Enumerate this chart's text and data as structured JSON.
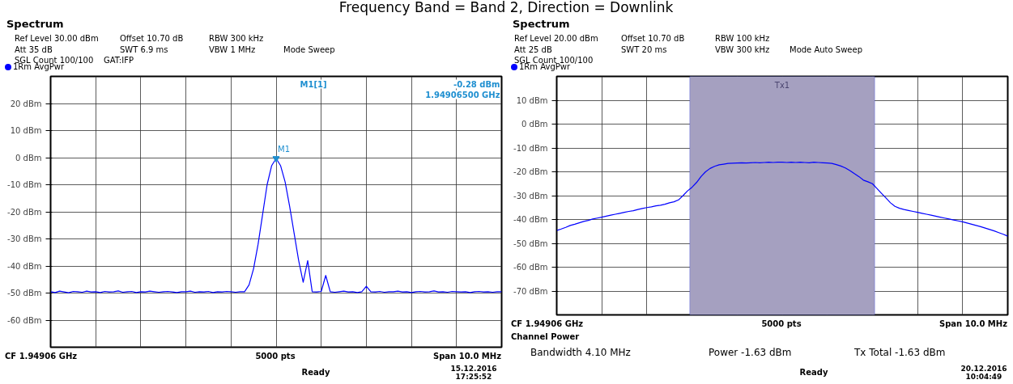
{
  "chart_data": [
    {
      "type": "line",
      "title": "Spectrum",
      "categories": [
        null,
        null,
        null,
        null,
        null,
        null,
        null,
        null,
        null,
        null,
        null,
        null,
        null,
        null,
        null,
        null,
        null,
        null,
        null,
        null,
        null,
        null,
        null,
        null,
        null,
        null,
        null,
        null,
        null,
        null,
        null,
        null,
        null,
        null,
        null,
        null,
        null,
        null,
        null,
        null,
        null,
        null,
        null,
        null,
        null,
        null,
        null,
        null,
        null,
        null,
        null,
        null,
        null,
        null,
        null,
        null,
        null,
        null,
        null,
        null,
        null,
        null,
        null,
        null,
        null,
        null,
        null,
        null,
        null,
        null,
        null,
        null,
        null,
        null,
        null,
        null,
        null,
        null,
        null,
        null,
        null,
        null,
        null,
        null,
        null,
        null,
        null,
        null,
        null,
        null,
        null,
        null,
        null,
        null,
        null,
        null,
        null,
        null,
        null,
        null,
        null
      ],
      "series": [
        {
          "name": "1Rm AvgPwr",
          "color": "#0000ff",
          "values": [
            -49.5,
            -49.8,
            -49.3,
            -49.6,
            -49.9,
            -49.4,
            -49.5,
            -49.7,
            -49.3,
            -49.6,
            -49.5,
            -49.8,
            -49.4,
            -49.6,
            -49.5,
            -49.2,
            -49.7,
            -49.5,
            -49.4,
            -49.8,
            -49.5,
            -49.6,
            -49.3,
            -49.5,
            -49.7,
            -49.5,
            -49.4,
            -49.6,
            -49.8,
            -49.5,
            -49.5,
            -49.3,
            -49.7,
            -49.5,
            -49.6,
            -49.4,
            -49.8,
            -49.5,
            -49.6,
            -49.4,
            -49.5,
            -49.7,
            -49.5,
            -49.5,
            -47,
            -41,
            -32,
            -21,
            -10,
            -3,
            -0.28,
            -3,
            -9,
            -18,
            -28,
            -38,
            -46,
            -38,
            -49.5,
            -49.6,
            -49.4,
            -43.5,
            -49.5,
            -49.7,
            -49.5,
            -49.3,
            -49.6,
            -49.5,
            -49.8,
            -49.5,
            -47.5,
            -49.5,
            -49.6,
            -49.4,
            -49.7,
            -49.5,
            -49.5,
            -49.3,
            -49.6,
            -49.5,
            -49.8,
            -49.5,
            -49.4,
            -49.6,
            -49.5,
            -49.2,
            -49.6,
            -49.5,
            -49.7,
            -49.4,
            -49.5,
            -49.6,
            -49.5,
            -49.8,
            -49.5,
            -49.4,
            -49.6,
            -49.5,
            -49.7,
            -49.5,
            -49.5
          ]
        }
      ],
      "ylim": [
        -70,
        30
      ],
      "yticks": [
        {
          "value": 20,
          "label": "20 dBm"
        },
        {
          "value": 10,
          "label": "10 dBm"
        },
        {
          "value": 0,
          "label": "0 dBm"
        },
        {
          "value": -10,
          "label": "-10 dBm"
        },
        {
          "value": -20,
          "label": "-20 dBm"
        },
        {
          "value": -30,
          "label": "-30 dBm"
        },
        {
          "value": -40,
          "label": "-40 dBm"
        },
        {
          "value": -50,
          "label": "-50 dBm"
        },
        {
          "value": -60,
          "label": "-60 dBm"
        }
      ],
      "grid": true,
      "annotations": [
        "Frequency Band = Band 2, Direction = Downlink",
        "Ref Level 30.00 dBm",
        "Offset 10.70 dB",
        "RBW 300 kHz",
        "Att 35 dB",
        "SWT 6.9 ms",
        "VBW 1 MHz",
        "Mode Sweep",
        "SGL Count 100/100",
        "GAT:IFP",
        "M1[1]",
        "-0.28 dBm",
        "1.94906500 GHz",
        "CF 1.94906 GHz",
        "5000 pts",
        "Span 10.0 MHz",
        "Ready",
        "15.12.2016",
        "17:25:52",
        "M1"
      ]
    },
    {
      "type": "line",
      "title": "Spectrum",
      "categories": [
        null,
        null,
        null,
        null,
        null,
        null,
        null,
        null,
        null,
        null,
        null,
        null,
        null,
        null,
        null,
        null,
        null,
        null,
        null,
        null,
        null,
        null,
        null,
        null,
        null,
        null,
        null,
        null,
        null,
        null,
        null,
        null,
        null,
        null,
        null,
        null,
        null,
        null,
        null,
        null,
        null,
        null,
        null,
        null,
        null,
        null,
        null,
        null,
        null,
        null,
        null,
        null,
        null,
        null,
        null,
        null,
        null,
        null,
        null,
        null,
        null,
        null,
        null,
        null,
        null,
        null,
        null,
        null,
        null,
        null,
        null,
        null,
        null,
        null,
        null,
        null,
        null,
        null,
        null,
        null,
        null,
        null,
        null,
        null,
        null,
        null,
        null,
        null,
        null,
        null,
        null,
        null,
        null,
        null,
        null,
        null,
        null,
        null,
        null,
        null,
        null
      ],
      "series": [
        {
          "name": "1Rm AvgPwr",
          "color": "#0000ff",
          "values": [
            -44.6,
            -44,
            -43.3,
            -42.5,
            -42,
            -41.4,
            -40.8,
            -40.4,
            -39.8,
            -39.4,
            -39,
            -38.6,
            -38.2,
            -37.8,
            -37.4,
            -37,
            -36.6,
            -36.3,
            -35.8,
            -35.4,
            -35,
            -34.7,
            -34.3,
            -34,
            -33.6,
            -33,
            -32.6,
            -31.8,
            -30,
            -28,
            -26.5,
            -24.5,
            -22,
            -20,
            -18.6,
            -17.7,
            -17.1,
            -16.8,
            -16.5,
            -16.4,
            -16.3,
            -16.2,
            -16.3,
            -16.2,
            -16.1,
            -16.2,
            -16.1,
            -16,
            -16.1,
            -16,
            -16,
            -16.1,
            -16,
            -16.1,
            -16,
            -16.1,
            -16.2,
            -16,
            -16.1,
            -16.2,
            -16.3,
            -16.5,
            -17,
            -17.6,
            -18.4,
            -19.5,
            -20.8,
            -22,
            -23.5,
            -24.2,
            -25,
            -27,
            -29,
            -31,
            -33,
            -34.5,
            -35.3,
            -35.8,
            -36.2,
            -36.6,
            -37,
            -37.4,
            -37.8,
            -38.2,
            -38.6,
            -39,
            -39.4,
            -39.8,
            -40.2,
            -40.6,
            -41,
            -41.5,
            -42,
            -42.5,
            -43,
            -43.6,
            -44.2,
            -44.8,
            -45.5,
            -46.2,
            -47
          ]
        }
      ],
      "ylim": [
        -80,
        20
      ],
      "yticks": [
        {
          "value": 10,
          "label": "10 dBm"
        },
        {
          "value": 0,
          "label": "0 dBm"
        },
        {
          "value": -10,
          "label": "-10 dBm"
        },
        {
          "value": -20,
          "label": "-20 dBm"
        },
        {
          "value": -30,
          "label": "-30 dBm"
        },
        {
          "value": -40,
          "label": "-40 dBm"
        },
        {
          "value": -50,
          "label": "-50 dBm"
        },
        {
          "value": -60,
          "label": "-60 dBm"
        },
        {
          "value": -70,
          "label": "-70 dBm"
        }
      ],
      "grid": true,
      "annotations": [
        "Tx1",
        "Ref Level 20.00 dBm",
        "Offset 10.70 dB",
        "RBW 100 kHz",
        "Att 25 dB",
        "SWT 20 ms",
        "VBW 300 kHz",
        "Mode Auto Sweep",
        "SGL Count 100/100",
        "Channel Power",
        "Bandwidth 4.10 MHz",
        "Power -1.63 dBm",
        "Tx Total -1.63 dBm",
        "CF 1.94906 GHz",
        "5000 pts",
        "Span 10.0 MHz",
        "Ready",
        "20.12.2016",
        "10:04:49"
      ]
    }
  ]
}
